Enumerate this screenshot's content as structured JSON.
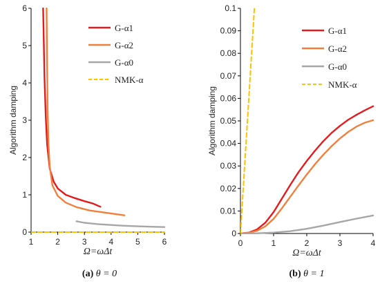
{
  "chart_data": [
    {
      "type": "line",
      "panel": "a",
      "caption": {
        "tag": "(a)",
        "text": "θ = 0"
      },
      "xlabel": "Ω=ωΔt",
      "ylabel": "Algorithm damping",
      "xlim": [
        1,
        6
      ],
      "ylim": [
        0,
        6
      ],
      "xticks": [
        "1",
        "2",
        "3",
        "4",
        "5",
        "6"
      ],
      "yticks": [
        "0",
        "1",
        "2",
        "3",
        "4",
        "5",
        "6"
      ],
      "legend_position": "top-right",
      "series": [
        {
          "name": "G-α1",
          "color": "#e41a1c",
          "dash": "solid",
          "x": [
            1.45,
            1.48,
            1.5,
            1.55,
            1.6,
            1.7,
            1.85,
            2.0,
            2.3,
            2.6,
            3.0,
            3.3,
            3.6
          ],
          "y": [
            6.0,
            5.0,
            4.2,
            3.1,
            2.35,
            1.7,
            1.35,
            1.17,
            1.0,
            0.92,
            0.83,
            0.77,
            0.68
          ]
        },
        {
          "name": "G-α2",
          "color": "#f07f3c",
          "dash": "solid",
          "x": [
            1.58,
            1.6,
            1.62,
            1.65,
            1.7,
            1.8,
            2.0,
            2.3,
            2.7,
            3.2,
            3.8,
            4.5
          ],
          "y": [
            6.0,
            4.5,
            3.3,
            2.4,
            1.75,
            1.25,
            0.97,
            0.79,
            0.67,
            0.58,
            0.52,
            0.45
          ]
        },
        {
          "name": "G-α0",
          "color": "#a6a6a6",
          "dash": "solid",
          "x": [
            2.7,
            3.0,
            3.5,
            4.0,
            4.5,
            5.0,
            5.5,
            6.0
          ],
          "y": [
            0.29,
            0.25,
            0.215,
            0.19,
            0.17,
            0.155,
            0.145,
            0.135
          ]
        },
        {
          "name": "NMK-α",
          "color": "#ffc000",
          "dash": "dashed",
          "x": [
            1.0,
            6.0
          ],
          "y": [
            0.0,
            0.0
          ]
        }
      ]
    },
    {
      "type": "line",
      "panel": "b",
      "caption": {
        "tag": "(b)",
        "text": "θ = 1"
      },
      "xlabel": "Ω=ωΔt",
      "ylabel": "Algorithm damping",
      "xlim": [
        0,
        4
      ],
      "ylim": [
        0,
        0.1
      ],
      "xticks": [
        "0",
        "1",
        "2",
        "3",
        "4"
      ],
      "yticks": [
        "0",
        "0.01",
        "0.02",
        "0.03",
        "0.04",
        "0.05",
        "0.06",
        "0.07",
        "0.08",
        "0.09",
        "0.1"
      ],
      "legend_position": "top-right",
      "series": [
        {
          "name": "G-α1",
          "color": "#e41a1c",
          "dash": "solid",
          "x": [
            0.0,
            0.25,
            0.5,
            0.75,
            1.0,
            1.25,
            1.5,
            1.75,
            2.0,
            2.25,
            2.5,
            2.75,
            3.0,
            3.25,
            3.5,
            3.75,
            4.0
          ],
          "y": [
            0.0,
            0.0004,
            0.0018,
            0.0048,
            0.0095,
            0.0155,
            0.0215,
            0.0272,
            0.0322,
            0.0368,
            0.041,
            0.0447,
            0.0478,
            0.0505,
            0.0527,
            0.0547,
            0.0565
          ]
        },
        {
          "name": "G-α2",
          "color": "#f07f3c",
          "dash": "solid",
          "x": [
            0.0,
            0.25,
            0.5,
            0.75,
            1.0,
            1.25,
            1.5,
            1.75,
            2.0,
            2.25,
            2.5,
            2.75,
            3.0,
            3.25,
            3.5,
            3.75,
            4.0
          ],
          "y": [
            0.0,
            0.0003,
            0.0012,
            0.0032,
            0.0065,
            0.0112,
            0.0163,
            0.0213,
            0.0262,
            0.0308,
            0.035,
            0.0388,
            0.0422,
            0.0451,
            0.0475,
            0.0492,
            0.0503
          ]
        },
        {
          "name": "G-α0",
          "color": "#a6a6a6",
          "dash": "solid",
          "x": [
            0.0,
            0.5,
            1.0,
            1.5,
            2.0,
            2.5,
            3.0,
            3.5,
            4.0
          ],
          "y": [
            0.0,
            0.0001,
            0.0004,
            0.001,
            0.0021,
            0.0035,
            0.0051,
            0.0066,
            0.008
          ]
        },
        {
          "name": "NMK-α",
          "color": "#ffc000",
          "dash": "dashed",
          "x": [
            0.0,
            0.42
          ],
          "y": [
            0.0,
            0.1
          ]
        }
      ]
    }
  ]
}
